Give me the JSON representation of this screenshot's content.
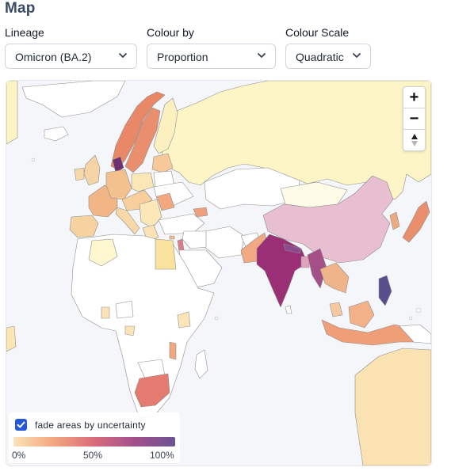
{
  "page": {
    "title": "Map"
  },
  "controls": [
    {
      "label": "Lineage",
      "value": "Omicron (BA.2)"
    },
    {
      "label": "Colour by",
      "value": "Proportion"
    },
    {
      "label": "Colour Scale",
      "value": "Quadratic"
    }
  ],
  "zoom": {
    "in_label": "+",
    "out_label": "−"
  },
  "legend": {
    "checkbox_label": "fade areas by uncertainty",
    "checkbox_checked": true,
    "ticks": [
      "0%",
      "50%",
      "100%"
    ],
    "gradient_colors": [
      "#fbe3b8",
      "#f3a67f",
      "#d96c7c",
      "#a24f8c",
      "#6b5393"
    ]
  },
  "colors": {
    "ocean": "#f5f6f9",
    "no_data": "#ffffff",
    "russia": "#fdf5c5",
    "china": "#e7bfd0",
    "india": "#9b2f76",
    "south_africa": "#e57a70",
    "philippines": "#5a4d8c",
    "accent": "#2458d6"
  }
}
